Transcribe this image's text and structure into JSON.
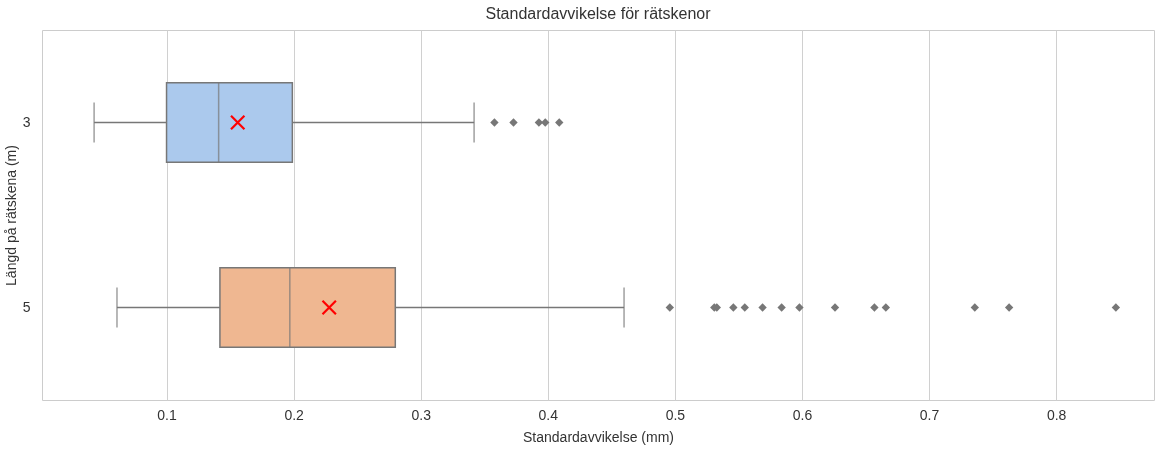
{
  "chart_data": {
    "type": "box",
    "title": "Standardavvikelse för rätskenor",
    "xlabel": "Standardavvikelse (mm)",
    "ylabel": "Längd på rätskena (m)",
    "orientation": "horizontal",
    "categories": [
      "3",
      "5"
    ],
    "colors": [
      "#abc9ed",
      "#efb791"
    ],
    "boxes": [
      {
        "low": 0.043,
        "q1": 0.1,
        "median": 0.141,
        "q3": 0.199,
        "high": 0.342,
        "mean": 0.156,
        "outliers": [
          0.358,
          0.373,
          0.393,
          0.398,
          0.409
        ]
      },
      {
        "low": 0.061,
        "q1": 0.142,
        "median": 0.197,
        "q3": 0.28,
        "high": 0.46,
        "mean": 0.228,
        "outliers": [
          0.496,
          0.531,
          0.533,
          0.546,
          0.555,
          0.569,
          0.584,
          0.598,
          0.626,
          0.657,
          0.666,
          0.736,
          0.763,
          0.847
        ]
      }
    ],
    "xlim": [
      0.002,
      0.877
    ],
    "xticks": [
      0.1,
      0.2,
      0.3,
      0.4,
      0.5,
      0.6,
      0.7,
      0.8
    ],
    "grid": "x",
    "legend": false
  }
}
